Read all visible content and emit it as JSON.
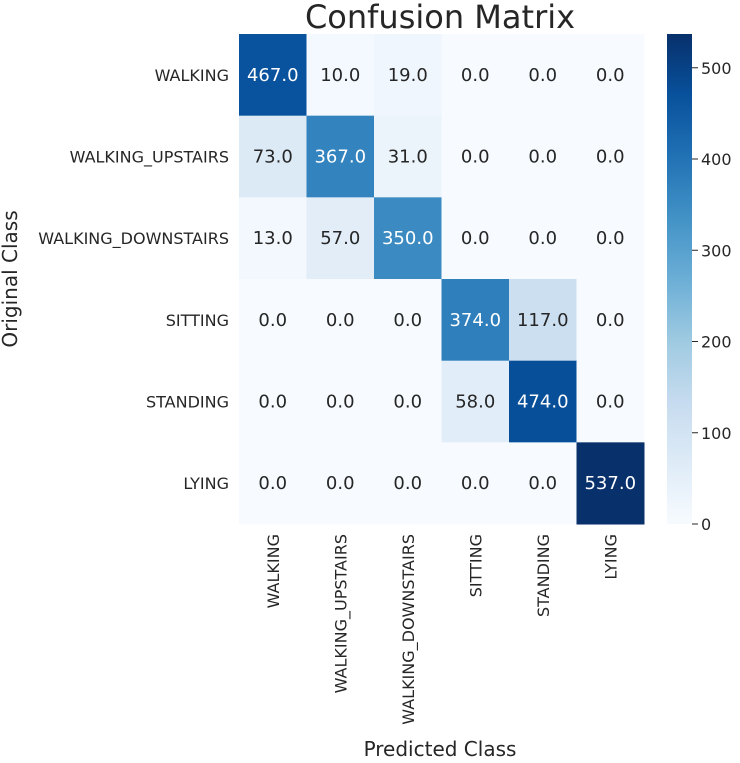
{
  "chart_data": {
    "type": "heatmap",
    "title": "Confusion Matrix",
    "xlabel": "Predicted Class",
    "ylabel": "Original Class",
    "x_categories": [
      "WALKING",
      "WALKING_UPSTAIRS",
      "WALKING_DOWNSTAIRS",
      "SITTING",
      "STANDING",
      "LYING"
    ],
    "y_categories": [
      "WALKING",
      "WALKING_UPSTAIRS",
      "WALKING_DOWNSTAIRS",
      "SITTING",
      "STANDING",
      "LYING"
    ],
    "values": [
      [
        467,
        10,
        19,
        0,
        0,
        0
      ],
      [
        73,
        367,
        31,
        0,
        0,
        0
      ],
      [
        13,
        57,
        350,
        0,
        0,
        0
      ],
      [
        0,
        0,
        0,
        374,
        117,
        0
      ],
      [
        0,
        0,
        0,
        58,
        474,
        0
      ],
      [
        0,
        0,
        0,
        0,
        0,
        537
      ]
    ],
    "value_format_decimals": 1,
    "colormap": "Blues",
    "colorbar": {
      "min": 0,
      "max": 537,
      "ticks": [
        0,
        100,
        200,
        300,
        400,
        500
      ]
    },
    "colors": {
      "low": "#f7fbff",
      "high": "#08306b"
    }
  }
}
